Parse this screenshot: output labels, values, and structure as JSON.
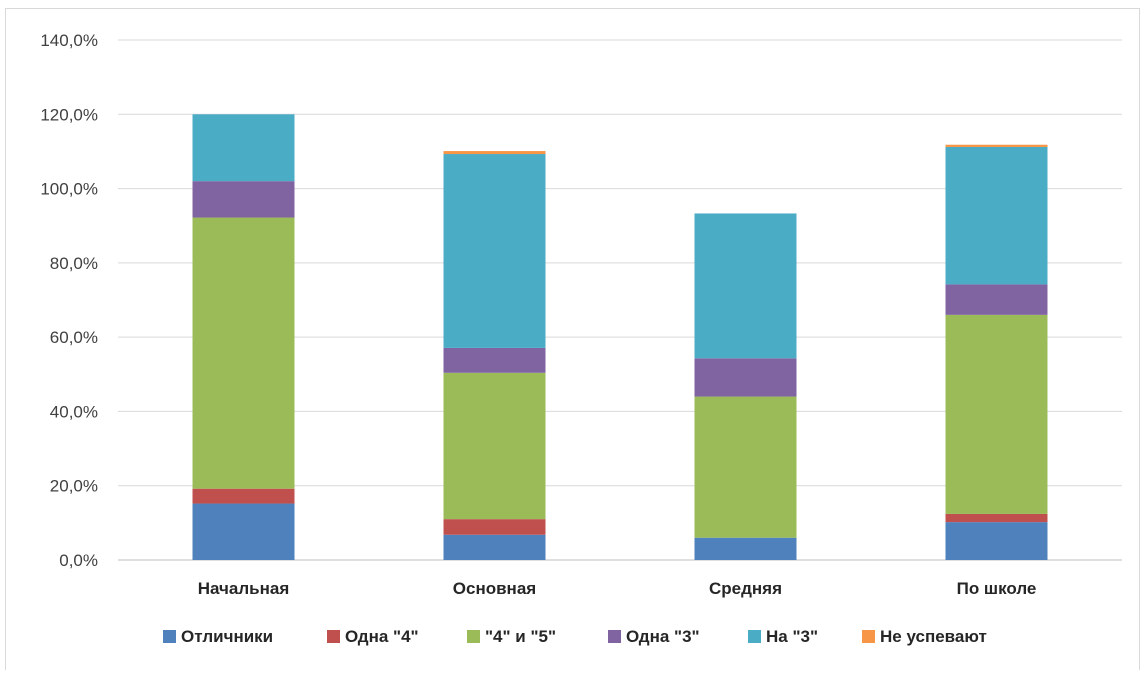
{
  "chart_data": {
    "type": "bar",
    "stacked": true,
    "title": "",
    "xlabel": "",
    "ylabel": "",
    "categories": [
      "Начальная",
      "Основная",
      "Средняя",
      "По школе"
    ],
    "ylim": [
      0,
      140
    ],
    "yticks": [
      "0,0%",
      "20,0%",
      "40,0%",
      "60,0%",
      "80,0%",
      "100,0%",
      "120,0%",
      "140,0%"
    ],
    "grid": true,
    "legend_position": "bottom",
    "series": [
      {
        "name": "Отличники",
        "color": "#4f81bd",
        "values": [
          15.2,
          6.8,
          6.0,
          10.2
        ]
      },
      {
        "name": "Одна \"4\"",
        "color": "#c0504d",
        "values": [
          4.0,
          4.2,
          0.0,
          2.2
        ]
      },
      {
        "name": "\"4\" и \"5\"",
        "color": "#9bbb59",
        "values": [
          73.0,
          39.4,
          38.0,
          53.6
        ]
      },
      {
        "name": "Одна \"3\"",
        "color": "#8064a2",
        "values": [
          9.8,
          6.7,
          10.3,
          8.2
        ]
      },
      {
        "name": "На \"3\"",
        "color": "#4bacc6",
        "values": [
          18.0,
          52.2,
          39.0,
          37.0
        ]
      },
      {
        "name": "Не успевают",
        "color": "#f79646",
        "values": [
          0.0,
          0.8,
          0.0,
          0.6
        ]
      }
    ]
  }
}
